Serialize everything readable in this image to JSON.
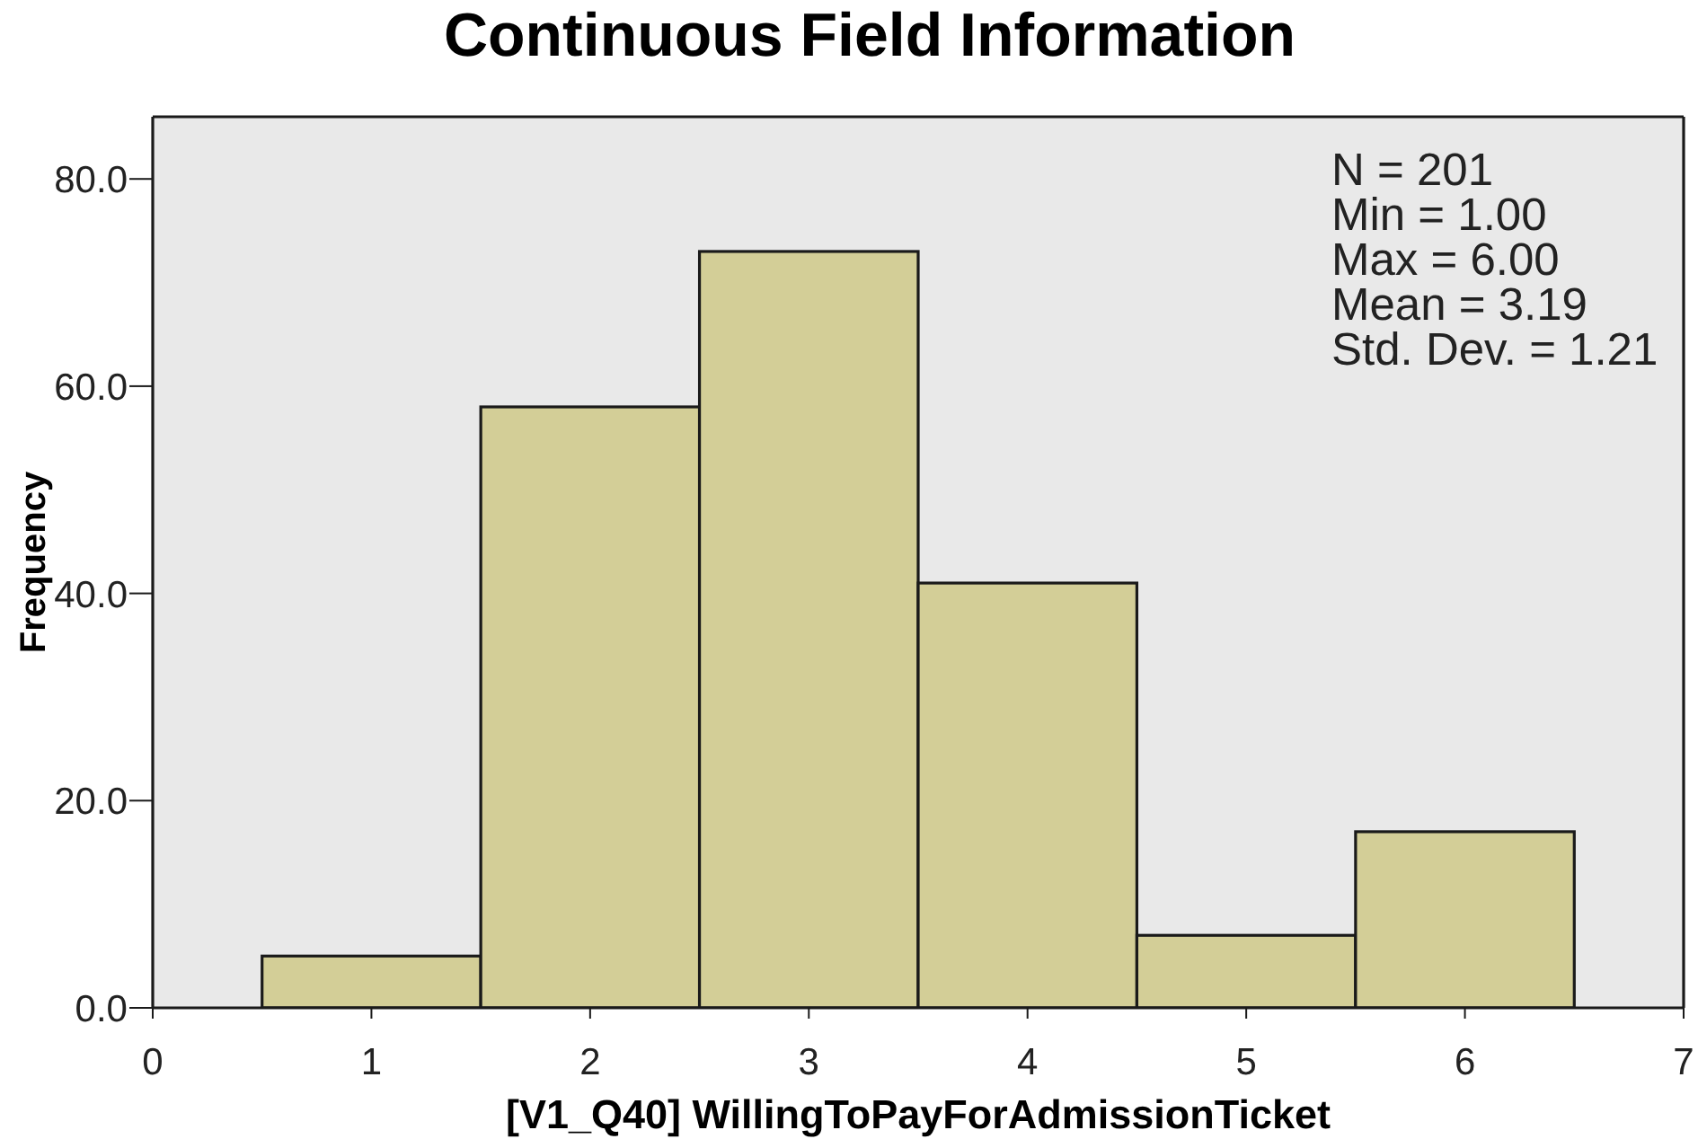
{
  "chart_data": {
    "type": "histogram",
    "title": "Continuous Field Information",
    "xlabel": "[V1_Q40] WillingToPayForAdmissionTicket",
    "ylabel": "Frequency",
    "bins": [
      0.5,
      1.5,
      2.5,
      3.5,
      4.5,
      5.5,
      6.5
    ],
    "values": [
      5,
      58,
      73,
      41,
      7,
      17
    ],
    "color": "#d3ce97",
    "xlim": [
      0,
      7
    ],
    "xticks": [
      0,
      1,
      2,
      3,
      4,
      5,
      6,
      7
    ],
    "ylim": [
      0,
      86
    ],
    "yticks": [
      {
        "value": 0,
        "label": "0.0"
      },
      {
        "value": 20,
        "label": "20.0"
      },
      {
        "value": 40,
        "label": "40.0"
      },
      {
        "value": 60,
        "label": "60.0"
      },
      {
        "value": 80,
        "label": "80.0"
      }
    ],
    "annotations": [
      "N = 201",
      "Min = 1.00",
      "Max = 6.00",
      "Mean = 3.19",
      "Std. Dev. = 1.21"
    ]
  }
}
